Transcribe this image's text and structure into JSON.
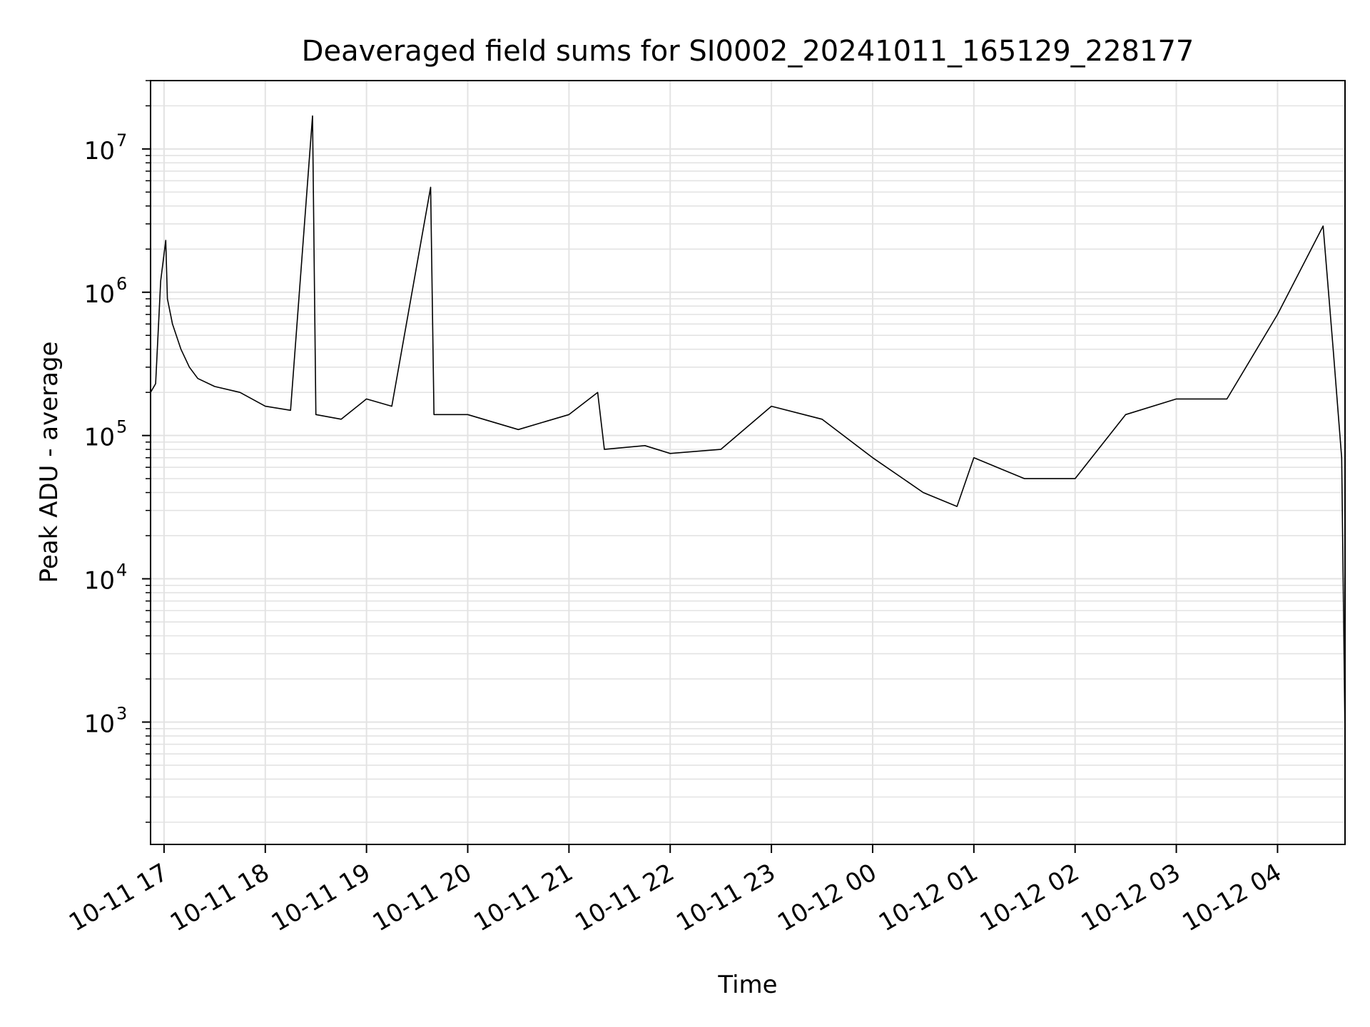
{
  "chart_data": {
    "type": "line",
    "title": "Deaveraged field sums for SI0002_20241011_165129_228177",
    "xlabel": "Time",
    "ylabel": "Peak ADU - average",
    "y_scale": "log",
    "grid": true,
    "line_color": "#000000",
    "ylim": [
      140,
      30000000
    ],
    "xlim": [
      "2024-10-11 16:52",
      "2024-10-12 04:40"
    ],
    "x_ticks": [
      {
        "label": "10-11 17",
        "time": "2024-10-11 17:00"
      },
      {
        "label": "10-11 18",
        "time": "2024-10-11 18:00"
      },
      {
        "label": "10-11 19",
        "time": "2024-10-11 19:00"
      },
      {
        "label": "10-11 20",
        "time": "2024-10-11 20:00"
      },
      {
        "label": "10-11 21",
        "time": "2024-10-11 21:00"
      },
      {
        "label": "10-11 22",
        "time": "2024-10-11 22:00"
      },
      {
        "label": "10-11 23",
        "time": "2024-10-11 23:00"
      },
      {
        "label": "10-12 00",
        "time": "2024-10-12 00:00"
      },
      {
        "label": "10-12 01",
        "time": "2024-10-12 01:00"
      },
      {
        "label": "10-12 02",
        "time": "2024-10-12 02:00"
      },
      {
        "label": "10-12 03",
        "time": "2024-10-12 03:00"
      },
      {
        "label": "10-12 04",
        "time": "2024-10-12 04:00"
      }
    ],
    "y_ticks": [
      {
        "base": "10",
        "exp": "3",
        "value": 1000
      },
      {
        "base": "10",
        "exp": "4",
        "value": 10000
      },
      {
        "base": "10",
        "exp": "5",
        "value": 100000
      },
      {
        "base": "10",
        "exp": "6",
        "value": 1000000
      },
      {
        "base": "10",
        "exp": "7",
        "value": 10000000
      }
    ],
    "series": [
      {
        "points": [
          [
            "2024-10-11 16:52",
            200000
          ],
          [
            "2024-10-11 16:55",
            230000
          ],
          [
            "2024-10-11 16:58",
            1200000
          ],
          [
            "2024-10-11 17:01",
            2300000
          ],
          [
            "2024-10-11 17:02",
            900000
          ],
          [
            "2024-10-11 17:05",
            600000
          ],
          [
            "2024-10-11 17:10",
            400000
          ],
          [
            "2024-10-11 17:15",
            300000
          ],
          [
            "2024-10-11 17:20",
            250000
          ],
          [
            "2024-10-11 17:30",
            220000
          ],
          [
            "2024-10-11 17:45",
            200000
          ],
          [
            "2024-10-11 18:00",
            160000
          ],
          [
            "2024-10-11 18:15",
            150000
          ],
          [
            "2024-10-11 18:28",
            17000000
          ],
          [
            "2024-10-11 18:30",
            140000
          ],
          [
            "2024-10-11 18:45",
            130000
          ],
          [
            "2024-10-11 19:00",
            180000
          ],
          [
            "2024-10-11 19:15",
            160000
          ],
          [
            "2024-10-11 19:38",
            5400000
          ],
          [
            "2024-10-11 19:40",
            140000
          ],
          [
            "2024-10-11 20:00",
            140000
          ],
          [
            "2024-10-11 20:30",
            110000
          ],
          [
            "2024-10-11 21:00",
            140000
          ],
          [
            "2024-10-11 21:17",
            200000
          ],
          [
            "2024-10-11 21:21",
            80000
          ],
          [
            "2024-10-11 21:45",
            85000
          ],
          [
            "2024-10-11 22:00",
            75000
          ],
          [
            "2024-10-11 22:30",
            80000
          ],
          [
            "2024-10-11 23:00",
            160000
          ],
          [
            "2024-10-11 23:30",
            130000
          ],
          [
            "2024-10-12 00:00",
            70000
          ],
          [
            "2024-10-12 00:30",
            40000
          ],
          [
            "2024-10-12 00:50",
            32000
          ],
          [
            "2024-10-12 01:00",
            70000
          ],
          [
            "2024-10-12 01:30",
            50000
          ],
          [
            "2024-10-12 02:00",
            50000
          ],
          [
            "2024-10-12 02:30",
            140000
          ],
          [
            "2024-10-12 03:00",
            180000
          ],
          [
            "2024-10-12 03:30",
            180000
          ],
          [
            "2024-10-12 04:00",
            700000
          ],
          [
            "2024-10-12 04:27",
            2900000
          ],
          [
            "2024-10-12 04:33",
            400000
          ],
          [
            "2024-10-12 04:38",
            70000
          ],
          [
            "2024-10-12 04:40",
            800
          ]
        ]
      }
    ]
  }
}
